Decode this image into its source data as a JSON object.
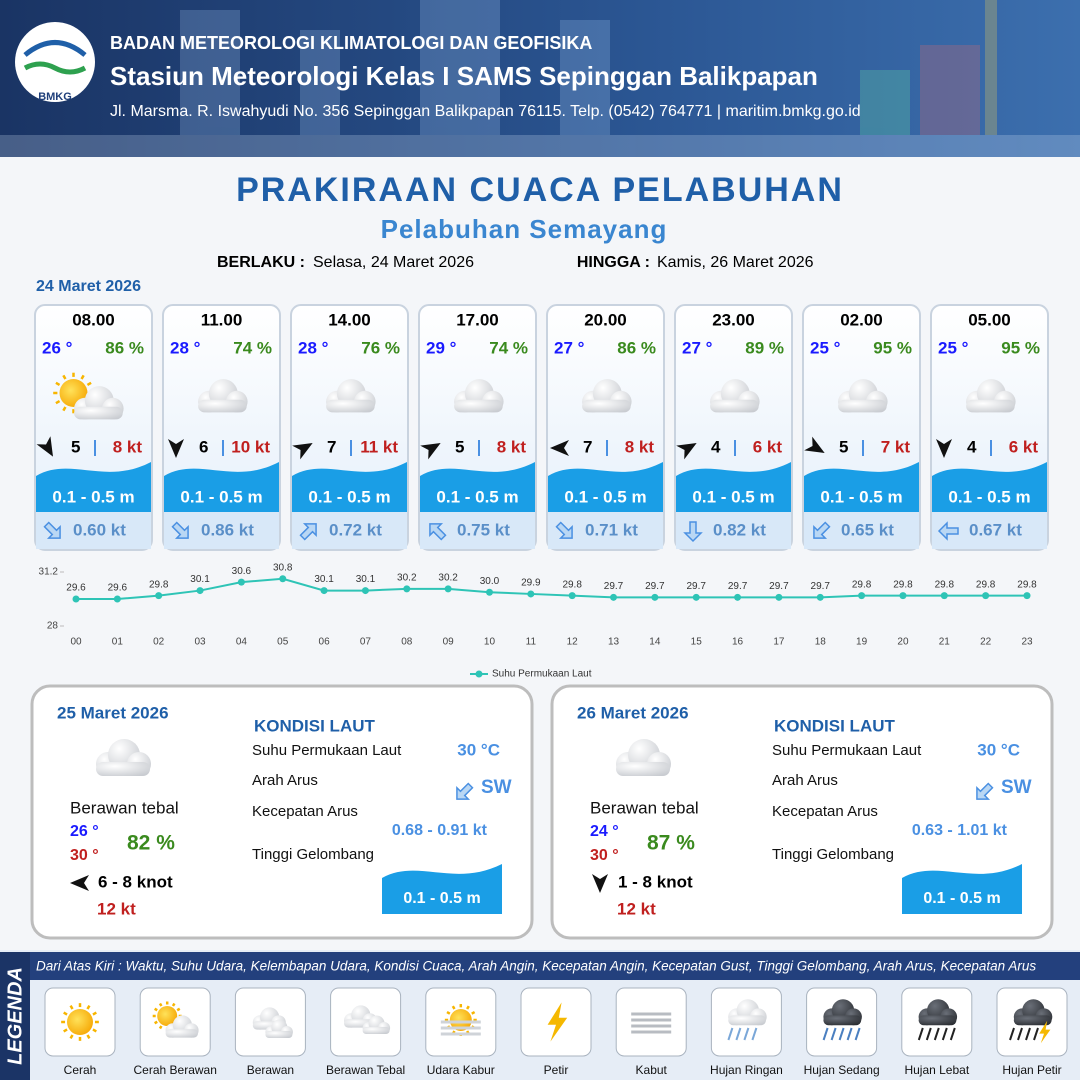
{
  "header": {
    "logo": "BMKG",
    "org": "BADAN METEOROLOGI KLIMATOLOGI DAN GEOFISIKA",
    "station": "Stasiun Meteorologi Kelas I SAMS Sepinggan Balikpapan",
    "address": "Jl. Marsma. R. Iswahyudi No. 356 Sepinggan Balikpapan 76115. Telp. (0542) 764771 | maritim.bmkg.go.id"
  },
  "title": "PRAKIRAAN CUACA PELABUHAN",
  "subtitle": "Pelabuhan Semayang",
  "validity": {
    "from_label": "BERLAKU :",
    "from": "Selasa, 24 Maret 2026",
    "to_label": "HINGGA :",
    "to": "Kamis, 26 Maret 2026"
  },
  "today": {
    "date": "24 Maret 2026",
    "forecasts": [
      {
        "time": "08.00",
        "temp": "26 °",
        "humidity": "86 %",
        "wind": "5",
        "gust": "8 kt",
        "wave": "0.1 - 0.5 m",
        "current": "0.60 kt"
      },
      {
        "time": "11.00",
        "temp": "28 °",
        "humidity": "74 %",
        "wind": "6",
        "gust": "10 kt",
        "wave": "0.1 - 0.5 m",
        "current": "0.86 kt"
      },
      {
        "time": "14.00",
        "temp": "28 °",
        "humidity": "76 %",
        "wind": "7",
        "gust": "11 kt",
        "wave": "0.1 - 0.5 m",
        "current": "0.72 kt"
      },
      {
        "time": "17.00",
        "temp": "29 °",
        "humidity": "74 %",
        "wind": "5",
        "gust": "8 kt",
        "wave": "0.1 - 0.5 m",
        "current": "0.75 kt"
      },
      {
        "time": "20.00",
        "temp": "27 °",
        "humidity": "86 %",
        "wind": "7",
        "gust": "8 kt",
        "wave": "0.1 - 0.5 m",
        "current": "0.71 kt"
      },
      {
        "time": "23.00",
        "temp": "27 °",
        "humidity": "89 %",
        "wind": "4",
        "gust": "6 kt",
        "wave": "0.1 - 0.5 m",
        "current": "0.82 kt"
      },
      {
        "time": "02.00",
        "temp": "25 °",
        "humidity": "95 %",
        "wind": "5",
        "gust": "7 kt",
        "wave": "0.1 - 0.5 m",
        "current": "0.65 kt"
      },
      {
        "time": "05.00",
        "temp": "25 °",
        "humidity": "95 %",
        "wind": "4",
        "gust": "6 kt",
        "wave": "0.1 - 0.5 m",
        "current": "0.67 kt"
      }
    ]
  },
  "chart_data": {
    "type": "line",
    "categories": [
      "00",
      "01",
      "02",
      "03",
      "04",
      "05",
      "06",
      "07",
      "08",
      "09",
      "10",
      "11",
      "12",
      "13",
      "14",
      "15",
      "16",
      "17",
      "18",
      "19",
      "20",
      "21",
      "22",
      "23"
    ],
    "series": [
      {
        "name": "Suhu Permukaan Laut",
        "color": "#2ec4b6",
        "values": [
          29.6,
          29.6,
          29.8,
          30.1,
          30.6,
          30.8,
          30.1,
          30.1,
          30.2,
          30.2,
          30.0,
          29.9,
          29.8,
          29.7,
          29.7,
          29.7,
          29.7,
          29.7,
          29.7,
          29.8,
          29.8,
          29.8,
          29.8,
          29.8
        ],
        "value_labels": [
          "29.6",
          "29.6",
          "29.8",
          "30.1",
          "30.6",
          "30.8",
          "30.1",
          "30.1",
          "30.2",
          "30.2",
          "30.0",
          "29.9",
          "29.8",
          "29.7",
          "29.7",
          "29.7",
          "29.7",
          "29.7",
          "29.7",
          "29.8",
          "29.8",
          "29.8",
          "29.8",
          "29.8"
        ]
      }
    ],
    "ylim": [
      28,
      31.2
    ],
    "yticks": [
      28,
      31.2
    ],
    "grid": false,
    "legend": "bottom"
  },
  "days": [
    {
      "date": "25 Maret 2026",
      "condition": "Berawan tebal",
      "temp_min": "26 °",
      "temp_max": "30 °",
      "humidity": "82 %",
      "wind": "6 - 8 knot",
      "gust": "12 kt",
      "sea": {
        "title": "KONDISI LAUT",
        "labels": [
          "Suhu Permukaan Laut",
          "Arah Arus",
          "Kecepatan Arus",
          "Tinggi Gelombang"
        ],
        "sst": "30 °C",
        "current_dir": "SW",
        "current_speed": "0.68  - 0.91 kt",
        "wave": "0.1 - 0.5 m"
      }
    },
    {
      "date": "26 Maret 2026",
      "condition": "Berawan tebal",
      "temp_min": "24 °",
      "temp_max": "30 °",
      "humidity": "87 %",
      "wind": "1 - 8 knot",
      "gust": "12 kt",
      "sea": {
        "title": "KONDISI LAUT",
        "labels": [
          "Suhu Permukaan Laut",
          "Arah Arus",
          "Kecepatan Arus",
          "Tinggi Gelombang"
        ],
        "sst": "30 °C",
        "current_dir": "SW",
        "current_speed": "0.63  - 1.01 kt",
        "wave": "0.1 - 0.5 m"
      }
    }
  ],
  "legend": {
    "title": "LEGENDA",
    "description": "Dari Atas Kiri : Waktu, Suhu Udara, Kelembapan Udara, Kondisi Cuaca, Arah Angin, Kecepatan Angin, Kecepatan Gust, Tinggi Gelombang, Arah Arus, Kecepatan Arus",
    "items": [
      "Cerah",
      "Cerah Berawan",
      "Berawan",
      "Berawan Tebal",
      "Udara Kabur",
      "Petir",
      "Kabut",
      "Hujan Ringan",
      "Hujan Sedang",
      "Hujan Lebat",
      "Hujan Petir"
    ]
  }
}
